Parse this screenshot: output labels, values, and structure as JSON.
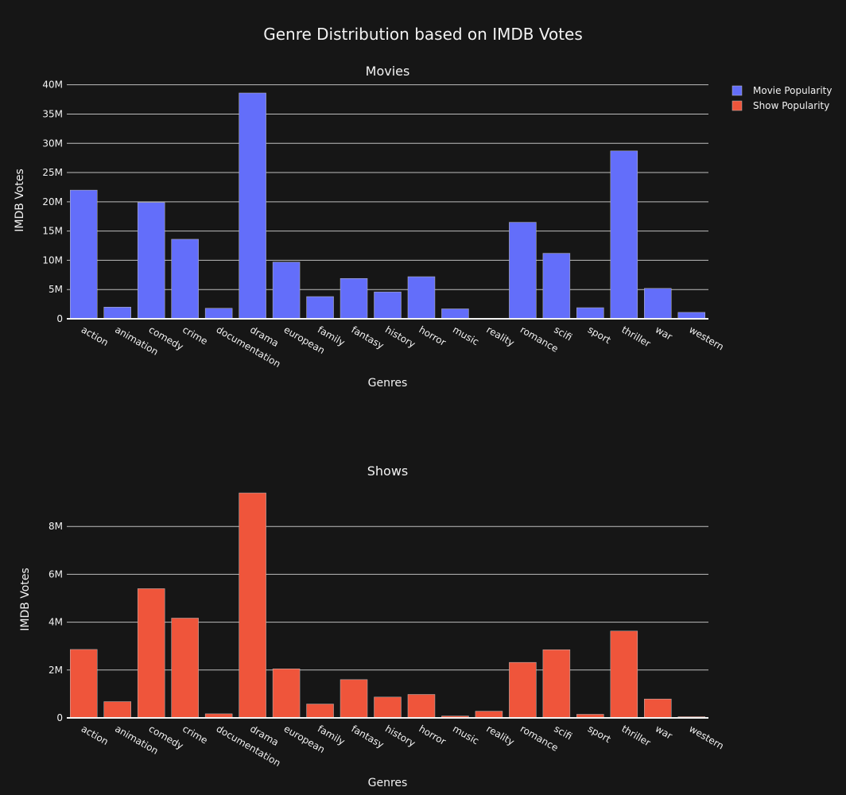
{
  "title": "Genre Distribution based on IMDB Votes",
  "legend": {
    "placement": "top-right",
    "items": [
      {
        "label": "Movie Popularity",
        "color": "#636efa"
      },
      {
        "label": "Show Popularity",
        "color": "#ef553b"
      }
    ]
  },
  "chart_data": [
    {
      "type": "bar",
      "subplot_title": "Movies",
      "xlabel": "Genres",
      "ylabel": "IMDB Votes",
      "ylim": [
        0,
        40500000
      ],
      "yticks": [
        0,
        5000000,
        10000000,
        15000000,
        20000000,
        25000000,
        30000000,
        35000000,
        40000000
      ],
      "ytick_labels": [
        "0",
        "5M",
        "10M",
        "15M",
        "20M",
        "25M",
        "30M",
        "35M",
        "40M"
      ],
      "grid": true,
      "categories": [
        "action",
        "animation",
        "comedy",
        "crime",
        "documentation",
        "drama",
        "european",
        "family",
        "fantasy",
        "history",
        "horror",
        "music",
        "reality",
        "romance",
        "scifi",
        "sport",
        "thriller",
        "war",
        "western"
      ],
      "series": [
        {
          "name": "Movie Popularity",
          "color": "#636efa",
          "values": [
            22000000,
            2000000,
            19900000,
            13600000,
            1800000,
            38600000,
            9700000,
            3800000,
            6900000,
            4600000,
            7200000,
            1700000,
            50000,
            16500000,
            11200000,
            1900000,
            28700000,
            5200000,
            1100000
          ]
        }
      ]
    },
    {
      "type": "bar",
      "subplot_title": "Shows",
      "xlabel": "Genres",
      "ylabel": "IMDB Votes",
      "ylim": [
        0,
        9900000
      ],
      "yticks": [
        0,
        2000000,
        4000000,
        6000000,
        8000000
      ],
      "ytick_labels": [
        "0",
        "2M",
        "4M",
        "6M",
        "8M"
      ],
      "grid": true,
      "categories": [
        "action",
        "animation",
        "comedy",
        "crime",
        "documentation",
        "drama",
        "european",
        "family",
        "fantasy",
        "history",
        "horror",
        "music",
        "reality",
        "romance",
        "scifi",
        "sport",
        "thriller",
        "war",
        "western"
      ],
      "series": [
        {
          "name": "Show Popularity",
          "color": "#ef553b",
          "values": [
            2860000,
            680000,
            5400000,
            4170000,
            170000,
            9400000,
            2050000,
            580000,
            1600000,
            870000,
            980000,
            80000,
            280000,
            2320000,
            2850000,
            150000,
            3630000,
            790000,
            50000
          ]
        }
      ]
    }
  ]
}
